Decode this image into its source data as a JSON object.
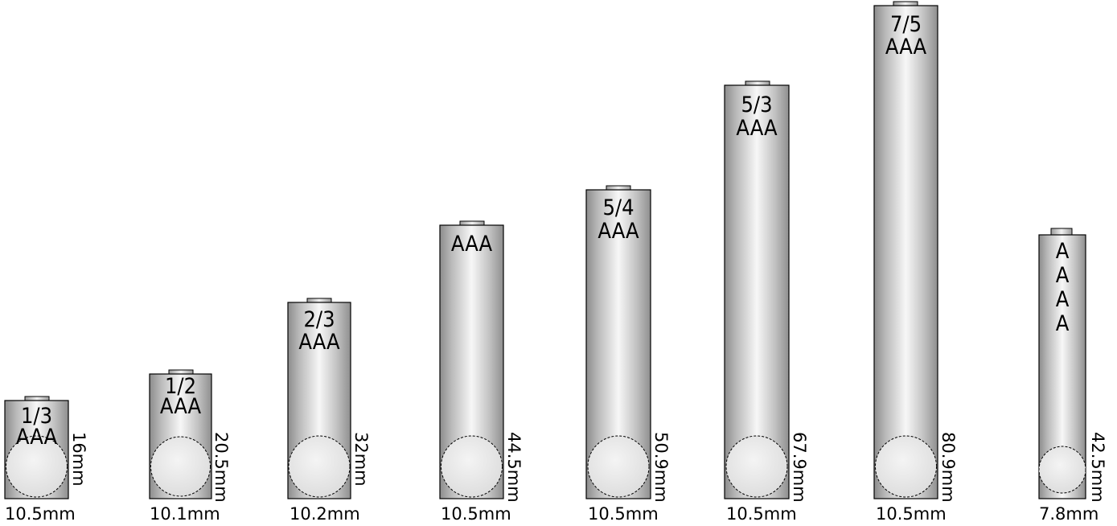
{
  "colors": {
    "body_edge": "#8a8a8a",
    "body_mid": "#f4f4f4",
    "body_dark": "#9a9a9a",
    "outline": "#000000",
    "circle_fill": "#e9e9e9"
  },
  "batteries": [
    {
      "label_lines": [
        "1/3",
        "AAA"
      ],
      "height_label": "16mm",
      "diameter_label": "10.5mm"
    },
    {
      "label_lines": [
        "1/2",
        "AAA"
      ],
      "height_label": "20.5mm",
      "diameter_label": "10.1mm"
    },
    {
      "label_lines": [
        "2/3",
        "AAA"
      ],
      "height_label": "32mm",
      "diameter_label": "10.2mm"
    },
    {
      "label_lines": [
        "AAA"
      ],
      "height_label": "44.5mm",
      "diameter_label": "10.5mm"
    },
    {
      "label_lines": [
        "5/4",
        "AAA"
      ],
      "height_label": "50.9mm",
      "diameter_label": "10.5mm"
    },
    {
      "label_lines": [
        "5/3",
        "AAA"
      ],
      "height_label": "67.9mm",
      "diameter_label": "10.5mm"
    },
    {
      "label_lines": [
        "7/5",
        "AAA"
      ],
      "height_label": "80.9mm",
      "diameter_label": "10.5mm"
    },
    {
      "label_lines": [
        "A",
        "A",
        "A",
        "A"
      ],
      "height_label": "42.5mm",
      "diameter_label": "7.8mm"
    }
  ]
}
